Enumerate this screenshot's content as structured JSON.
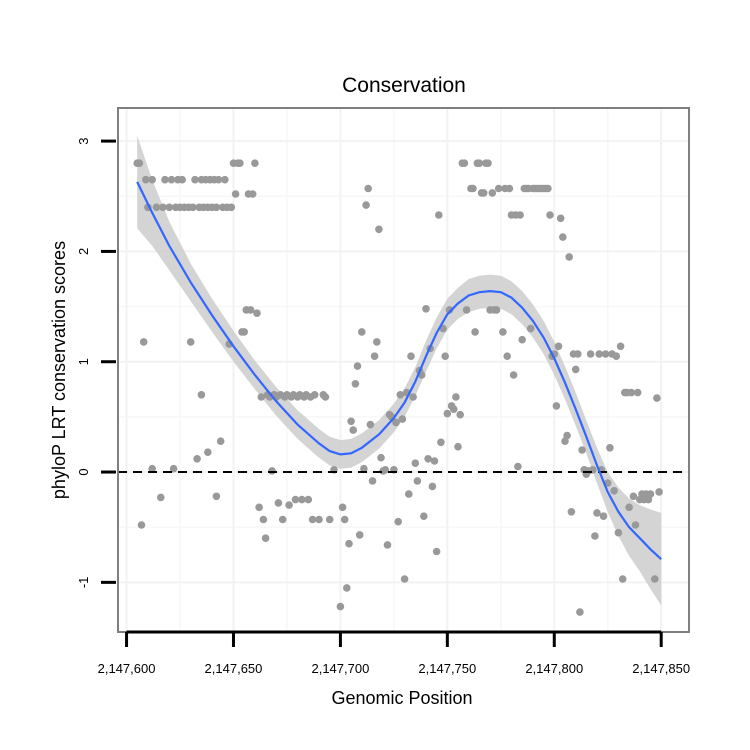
{
  "chart_data": {
    "type": "scatter",
    "title": "Conservation",
    "xlabel": "Genomic Position",
    "ylabel": "phyloP LRT conservation scores",
    "xlim": [
      2147596,
      2147863
    ],
    "ylim": [
      -1.45,
      3.3
    ],
    "xticks": [
      2147600,
      2147650,
      2147700,
      2147750,
      2147800,
      2147850
    ],
    "xtick_labels": [
      "2,147,600",
      "2,147,650",
      "2,147,700",
      "2,147,750",
      "2,147,800",
      "2,147,850"
    ],
    "yticks": [
      -1,
      0,
      1,
      2,
      3
    ],
    "ytick_labels": [
      "-1",
      "0",
      "1",
      "2",
      "3"
    ],
    "reference_line": {
      "y": 0,
      "style": "dashed"
    },
    "colors": {
      "points": "#999999",
      "smooth": "#3366ff",
      "band": "#cccccc",
      "frame": "#7f7f7f",
      "grid": "#f2f2f2"
    },
    "points": [
      [
        2147605,
        2.8
      ],
      [
        2147606,
        2.8
      ],
      [
        2147607,
        -0.48
      ],
      [
        2147608,
        1.18
      ],
      [
        2147609,
        2.65
      ],
      [
        2147610,
        2.4
      ],
      [
        2147612,
        2.65
      ],
      [
        2147612,
        0.03
      ],
      [
        2147614,
        2.4
      ],
      [
        2147616,
        -0.23
      ],
      [
        2147617,
        2.4
      ],
      [
        2147618,
        2.65
      ],
      [
        2147620,
        2.4
      ],
      [
        2147621,
        2.65
      ],
      [
        2147622,
        0.03
      ],
      [
        2147623,
        2.4
      ],
      [
        2147624,
        2.65
      ],
      [
        2147625,
        2.4
      ],
      [
        2147626,
        2.65
      ],
      [
        2147627,
        2.4
      ],
      [
        2147629,
        2.4
      ],
      [
        2147630,
        1.18
      ],
      [
        2147631,
        2.4
      ],
      [
        2147632,
        2.65
      ],
      [
        2147633,
        0.12
      ],
      [
        2147634,
        2.4
      ],
      [
        2147635,
        2.65
      ],
      [
        2147635,
        0.7
      ],
      [
        2147636,
        2.4
      ],
      [
        2147637,
        2.65
      ],
      [
        2147638,
        2.4
      ],
      [
        2147638,
        0.18
      ],
      [
        2147639,
        2.65
      ],
      [
        2147640,
        2.4
      ],
      [
        2147641,
        2.65
      ],
      [
        2147642,
        2.4
      ],
      [
        2147642,
        -0.22
      ],
      [
        2147643,
        2.65
      ],
      [
        2147644,
        0.28
      ],
      [
        2147645,
        2.4
      ],
      [
        2147646,
        2.65
      ],
      [
        2147647,
        2.4
      ],
      [
        2147648,
        1.16
      ],
      [
        2147649,
        2.4
      ],
      [
        2147650,
        2.8
      ],
      [
        2147651,
        2.52
      ],
      [
        2147652,
        2.8
      ],
      [
        2147653,
        2.8
      ],
      [
        2147654,
        1.27
      ],
      [
        2147655,
        1.27
      ],
      [
        2147656,
        1.47
      ],
      [
        2147657,
        2.52
      ],
      [
        2147658,
        1.47
      ],
      [
        2147659,
        2.52
      ],
      [
        2147660,
        2.8
      ],
      [
        2147661,
        1.44
      ],
      [
        2147662,
        -0.32
      ],
      [
        2147663,
        0.68
      ],
      [
        2147664,
        -0.43
      ],
      [
        2147665,
        -0.6
      ],
      [
        2147666,
        0.7
      ],
      [
        2147667,
        0.68
      ],
      [
        2147668,
        0.01
      ],
      [
        2147669,
        0.7
      ],
      [
        2147670,
        0.68
      ],
      [
        2147671,
        -0.28
      ],
      [
        2147672,
        0.7
      ],
      [
        2147673,
        -0.43
      ],
      [
        2147674,
        0.68
      ],
      [
        2147675,
        0.7
      ],
      [
        2147676,
        -0.3
      ],
      [
        2147677,
        0.68
      ],
      [
        2147678,
        0.7
      ],
      [
        2147679,
        -0.25
      ],
      [
        2147680,
        0.68
      ],
      [
        2147681,
        0.7
      ],
      [
        2147682,
        -0.25
      ],
      [
        2147683,
        0.68
      ],
      [
        2147684,
        0.7
      ],
      [
        2147685,
        -0.25
      ],
      [
        2147686,
        0.68
      ],
      [
        2147687,
        -0.43
      ],
      [
        2147688,
        0.7
      ],
      [
        2147690,
        -0.43
      ],
      [
        2147692,
        0.7
      ],
      [
        2147693,
        0.68
      ],
      [
        2147695,
        -0.43
      ],
      [
        2147697,
        0.02
      ],
      [
        2147700,
        -1.22
      ],
      [
        2147701,
        -0.32
      ],
      [
        2147702,
        -0.43
      ],
      [
        2147703,
        -1.05
      ],
      [
        2147704,
        -0.65
      ],
      [
        2147705,
        0.46
      ],
      [
        2147706,
        0.38
      ],
      [
        2147707,
        0.8
      ],
      [
        2147708,
        0.96
      ],
      [
        2147709,
        -0.57
      ],
      [
        2147710,
        1.27
      ],
      [
        2147711,
        0.03
      ],
      [
        2147712,
        2.42
      ],
      [
        2147713,
        2.57
      ],
      [
        2147714,
        0.43
      ],
      [
        2147715,
        -0.08
      ],
      [
        2147716,
        1.05
      ],
      [
        2147717,
        1.18
      ],
      [
        2147718,
        2.2
      ],
      [
        2147719,
        0.13
      ],
      [
        2147720,
        0.01
      ],
      [
        2147721,
        0.02
      ],
      [
        2147722,
        -0.66
      ],
      [
        2147723,
        0.52
      ],
      [
        2147724,
        0.5
      ],
      [
        2147725,
        0.02
      ],
      [
        2147726,
        0.45
      ],
      [
        2147727,
        -0.45
      ],
      [
        2147728,
        0.7
      ],
      [
        2147729,
        0.48
      ],
      [
        2147730,
        -0.97
      ],
      [
        2147731,
        0.72
      ],
      [
        2147732,
        -0.2
      ],
      [
        2147733,
        1.05
      ],
      [
        2147734,
        0.68
      ],
      [
        2147735,
        0.08
      ],
      [
        2147736,
        -0.08
      ],
      [
        2147737,
        0.92
      ],
      [
        2147738,
        0.88
      ],
      [
        2147739,
        -0.4
      ],
      [
        2147740,
        1.48
      ],
      [
        2147741,
        0.12
      ],
      [
        2147742,
        1.12
      ],
      [
        2147743,
        -0.13
      ],
      [
        2147744,
        0.1
      ],
      [
        2147745,
        -0.72
      ],
      [
        2147746,
        2.33
      ],
      [
        2147747,
        0.27
      ],
      [
        2147748,
        1.3
      ],
      [
        2147749,
        1.05
      ],
      [
        2147750,
        0.53
      ],
      [
        2147751,
        1.47
      ],
      [
        2147752,
        0.6
      ],
      [
        2147753,
        0.57
      ],
      [
        2147754,
        0.68
      ],
      [
        2147755,
        0.23
      ],
      [
        2147756,
        0.52
      ],
      [
        2147757,
        2.8
      ],
      [
        2147758,
        2.8
      ],
      [
        2147759,
        1.47
      ],
      [
        2147761,
        2.57
      ],
      [
        2147762,
        2.57
      ],
      [
        2147763,
        1.27
      ],
      [
        2147764,
        2.8
      ],
      [
        2147765,
        2.8
      ],
      [
        2147766,
        2.53
      ],
      [
        2147767,
        2.53
      ],
      [
        2147768,
        2.8
      ],
      [
        2147769,
        2.8
      ],
      [
        2147770,
        1.47
      ],
      [
        2147771,
        2.53
      ],
      [
        2147772,
        1.47
      ],
      [
        2147773,
        1.47
      ],
      [
        2147774,
        2.57
      ],
      [
        2147776,
        1.27
      ],
      [
        2147777,
        2.57
      ],
      [
        2147778,
        1.05
      ],
      [
        2147779,
        2.57
      ],
      [
        2147780,
        2.33
      ],
      [
        2147781,
        0.88
      ],
      [
        2147782,
        2.33
      ],
      [
        2147783,
        0.05
      ],
      [
        2147784,
        2.33
      ],
      [
        2147785,
        1.2
      ],
      [
        2147786,
        2.57
      ],
      [
        2147787,
        2.57
      ],
      [
        2147788,
        2.57
      ],
      [
        2147789,
        1.3
      ],
      [
        2147790,
        2.57
      ],
      [
        2147791,
        2.57
      ],
      [
        2147792,
        2.57
      ],
      [
        2147793,
        2.57
      ],
      [
        2147794,
        2.57
      ],
      [
        2147795,
        2.57
      ],
      [
        2147796,
        2.57
      ],
      [
        2147797,
        2.57
      ],
      [
        2147798,
        2.33
      ],
      [
        2147799,
        1.05
      ],
      [
        2147800,
        1.07
      ],
      [
        2147801,
        0.6
      ],
      [
        2147802,
        1.14
      ],
      [
        2147803,
        2.3
      ],
      [
        2147804,
        2.13
      ],
      [
        2147805,
        0.28
      ],
      [
        2147806,
        0.33
      ],
      [
        2147807,
        1.95
      ],
      [
        2147808,
        -0.36
      ],
      [
        2147809,
        1.07
      ],
      [
        2147810,
        0.93
      ],
      [
        2147811,
        1.07
      ],
      [
        2147812,
        -1.27
      ],
      [
        2147813,
        0.2
      ],
      [
        2147814,
        0.02
      ],
      [
        2147815,
        -0.02
      ],
      [
        2147816,
        0.01
      ],
      [
        2147817,
        1.07
      ],
      [
        2147818,
        0.02
      ],
      [
        2147819,
        -0.58
      ],
      [
        2147820,
        -0.37
      ],
      [
        2147821,
        1.07
      ],
      [
        2147822,
        0.02
      ],
      [
        2147823,
        -0.4
      ],
      [
        2147824,
        1.07
      ],
      [
        2147825,
        -0.1
      ],
      [
        2147826,
        0.22
      ],
      [
        2147827,
        1.07
      ],
      [
        2147828,
        -0.17
      ],
      [
        2147829,
        1.05
      ],
      [
        2147830,
        -0.55
      ],
      [
        2147831,
        1.14
      ],
      [
        2147832,
        -0.97
      ],
      [
        2147833,
        0.72
      ],
      [
        2147834,
        0.72
      ],
      [
        2147835,
        -0.32
      ],
      [
        2147836,
        0.72
      ],
      [
        2147837,
        -0.22
      ],
      [
        2147838,
        -0.48
      ],
      [
        2147839,
        0.72
      ],
      [
        2147840,
        -0.25
      ],
      [
        2147841,
        -0.2
      ],
      [
        2147842,
        -0.25
      ],
      [
        2147843,
        -0.2
      ],
      [
        2147844,
        -0.25
      ],
      [
        2147845,
        -0.2
      ],
      [
        2147847,
        -0.97
      ],
      [
        2147848,
        0.67
      ],
      [
        2147849,
        -0.18
      ]
    ],
    "smooth": [
      [
        2147605,
        2.63
      ],
      [
        2147612,
        2.35
      ],
      [
        2147620,
        2.05
      ],
      [
        2147630,
        1.72
      ],
      [
        2147640,
        1.42
      ],
      [
        2147650,
        1.14
      ],
      [
        2147660,
        0.88
      ],
      [
        2147670,
        0.64
      ],
      [
        2147680,
        0.43
      ],
      [
        2147690,
        0.26
      ],
      [
        2147695,
        0.19
      ],
      [
        2147700,
        0.16
      ],
      [
        2147705,
        0.17
      ],
      [
        2147710,
        0.22
      ],
      [
        2147718,
        0.34
      ],
      [
        2147725,
        0.49
      ],
      [
        2147730,
        0.63
      ],
      [
        2147735,
        0.82
      ],
      [
        2147740,
        1.05
      ],
      [
        2147745,
        1.26
      ],
      [
        2147750,
        1.43
      ],
      [
        2147755,
        1.53
      ],
      [
        2147760,
        1.6
      ],
      [
        2147765,
        1.63
      ],
      [
        2147770,
        1.64
      ],
      [
        2147775,
        1.63
      ],
      [
        2147780,
        1.58
      ],
      [
        2147785,
        1.49
      ],
      [
        2147790,
        1.37
      ],
      [
        2147795,
        1.22
      ],
      [
        2147800,
        1.03
      ],
      [
        2147805,
        0.81
      ],
      [
        2147810,
        0.57
      ],
      [
        2147815,
        0.32
      ],
      [
        2147820,
        0.06
      ],
      [
        2147825,
        -0.18
      ],
      [
        2147830,
        -0.36
      ],
      [
        2147835,
        -0.5
      ],
      [
        2147840,
        -0.6
      ],
      [
        2147845,
        -0.7
      ],
      [
        2147850,
        -0.79
      ]
    ],
    "band_halfwidth": [
      0.42,
      0.3,
      0.22,
      0.17,
      0.15,
      0.14,
      0.13,
      0.13,
      0.13,
      0.13,
      0.13,
      0.13,
      0.13,
      0.13,
      0.13,
      0.13,
      0.13,
      0.13,
      0.14,
      0.14,
      0.14,
      0.14,
      0.15,
      0.15,
      0.15,
      0.15,
      0.15,
      0.15,
      0.15,
      0.15,
      0.15,
      0.15,
      0.15,
      0.15,
      0.16,
      0.18,
      0.22,
      0.26,
      0.3,
      0.36,
      0.42
    ]
  }
}
